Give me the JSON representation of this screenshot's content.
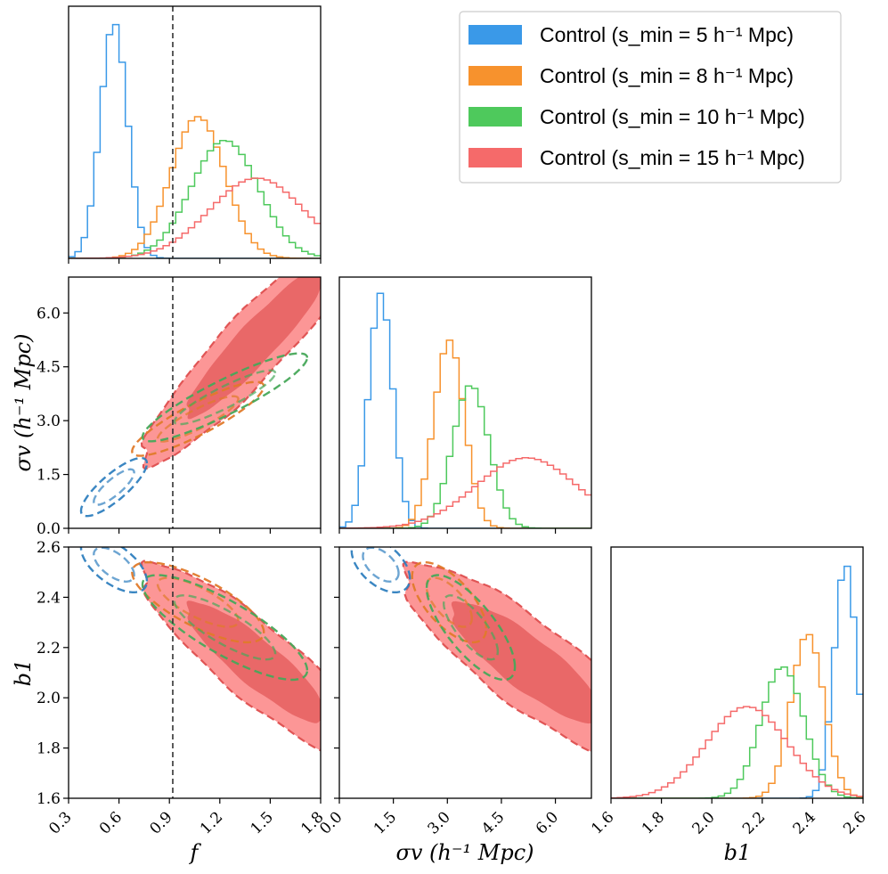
{
  "chart_data": {
    "type": "corner",
    "parameters": [
      "f",
      "σv",
      "b1"
    ],
    "axis_labels": {
      "f": "f",
      "sigma_v": "σv (h⁻¹ Mpc)",
      "b1": "b1"
    },
    "ranges": {
      "f": [
        0.3,
        1.8
      ],
      "sigma_v": [
        0.0,
        7.0
      ],
      "b1": [
        1.6,
        2.6
      ]
    },
    "ticks": {
      "f": [
        "0.3",
        "0.6",
        "0.9",
        "1.2",
        "1.5",
        "1.8"
      ],
      "sigma_v": [
        "0.0",
        "1.5",
        "3.0",
        "4.5",
        "6.0"
      ],
      "b1": [
        "1.6",
        "1.8",
        "2.0",
        "2.2",
        "2.4",
        "2.6"
      ]
    },
    "reference_line": {
      "parameter": "f",
      "value": 0.92,
      "style": "dashed"
    },
    "legend": {
      "placement": "top-right",
      "entries": [
        {
          "label": "Control (s_min = 5 h⁻¹ Mpc)",
          "color": "#3a99e8"
        },
        {
          "label": "Control (s_min = 8 h⁻¹ Mpc)",
          "color": "#f7922d"
        },
        {
          "label": "Control (s_min = 10 h⁻¹ Mpc)",
          "color": "#4ec95c"
        },
        {
          "label": "Control (s_min = 15 h⁻¹ Mpc)",
          "color": "#f56a6a"
        }
      ]
    },
    "series": [
      {
        "name": "Control (s_min = 5 h⁻¹ Mpc)",
        "color": "#3a99e8",
        "contour_color": "#2f7fbf",
        "mean": {
          "f": 0.57,
          "sigma_v": 1.15,
          "b1": 2.53
        },
        "std": {
          "f": 0.08,
          "sigma_v": 0.33,
          "b1": 0.045
        },
        "corr": {
          "f_sigma_v": 0.82,
          "f_b1": -0.6,
          "sigma_v_b1": -0.5
        },
        "peak_density": {
          "f": 1.0,
          "sigma_v": 1.0,
          "b1": 1.0
        }
      },
      {
        "name": "Control (s_min = 8 h⁻¹ Mpc)",
        "color": "#f7922d",
        "contour_color": "#e07a2a",
        "mean": {
          "f": 1.07,
          "sigma_v": 3.05,
          "b1": 2.38
        },
        "std": {
          "f": 0.16,
          "sigma_v": 0.42,
          "b1": 0.065
        },
        "corr": {
          "f_sigma_v": 0.88,
          "f_b1": -0.75,
          "sigma_v_b1": -0.65
        },
        "peak_density": {
          "f": 0.6,
          "sigma_v": 0.8,
          "b1": 0.7
        }
      },
      {
        "name": "Control (s_min = 10 h⁻¹ Mpc)",
        "color": "#4ec95c",
        "contour_color": "#47a85a",
        "mean": {
          "f": 1.23,
          "sigma_v": 3.65,
          "b1": 2.28
        },
        "std": {
          "f": 0.2,
          "sigma_v": 0.5,
          "b1": 0.085
        },
        "corr": {
          "f_sigma_v": 0.9,
          "f_b1": -0.82,
          "sigma_v_b1": -0.75
        },
        "peak_density": {
          "f": 0.5,
          "sigma_v": 0.61,
          "b1": 0.56
        }
      },
      {
        "name": "Control (s_min = 15 h⁻¹ Mpc)",
        "color": "#f56a6a",
        "contour_color": "#e05555",
        "mean": {
          "f": 1.42,
          "sigma_v": 5.2,
          "b1": 2.14
        },
        "std": {
          "f": 0.28,
          "sigma_v": 1.4,
          "b1": 0.16
        },
        "corr": {
          "f_sigma_v": 0.93,
          "f_b1": -0.88,
          "sigma_v_b1": -0.85
        },
        "peak_density": {
          "f": 0.34,
          "sigma_v": 0.3,
          "b1": 0.39
        }
      }
    ]
  }
}
